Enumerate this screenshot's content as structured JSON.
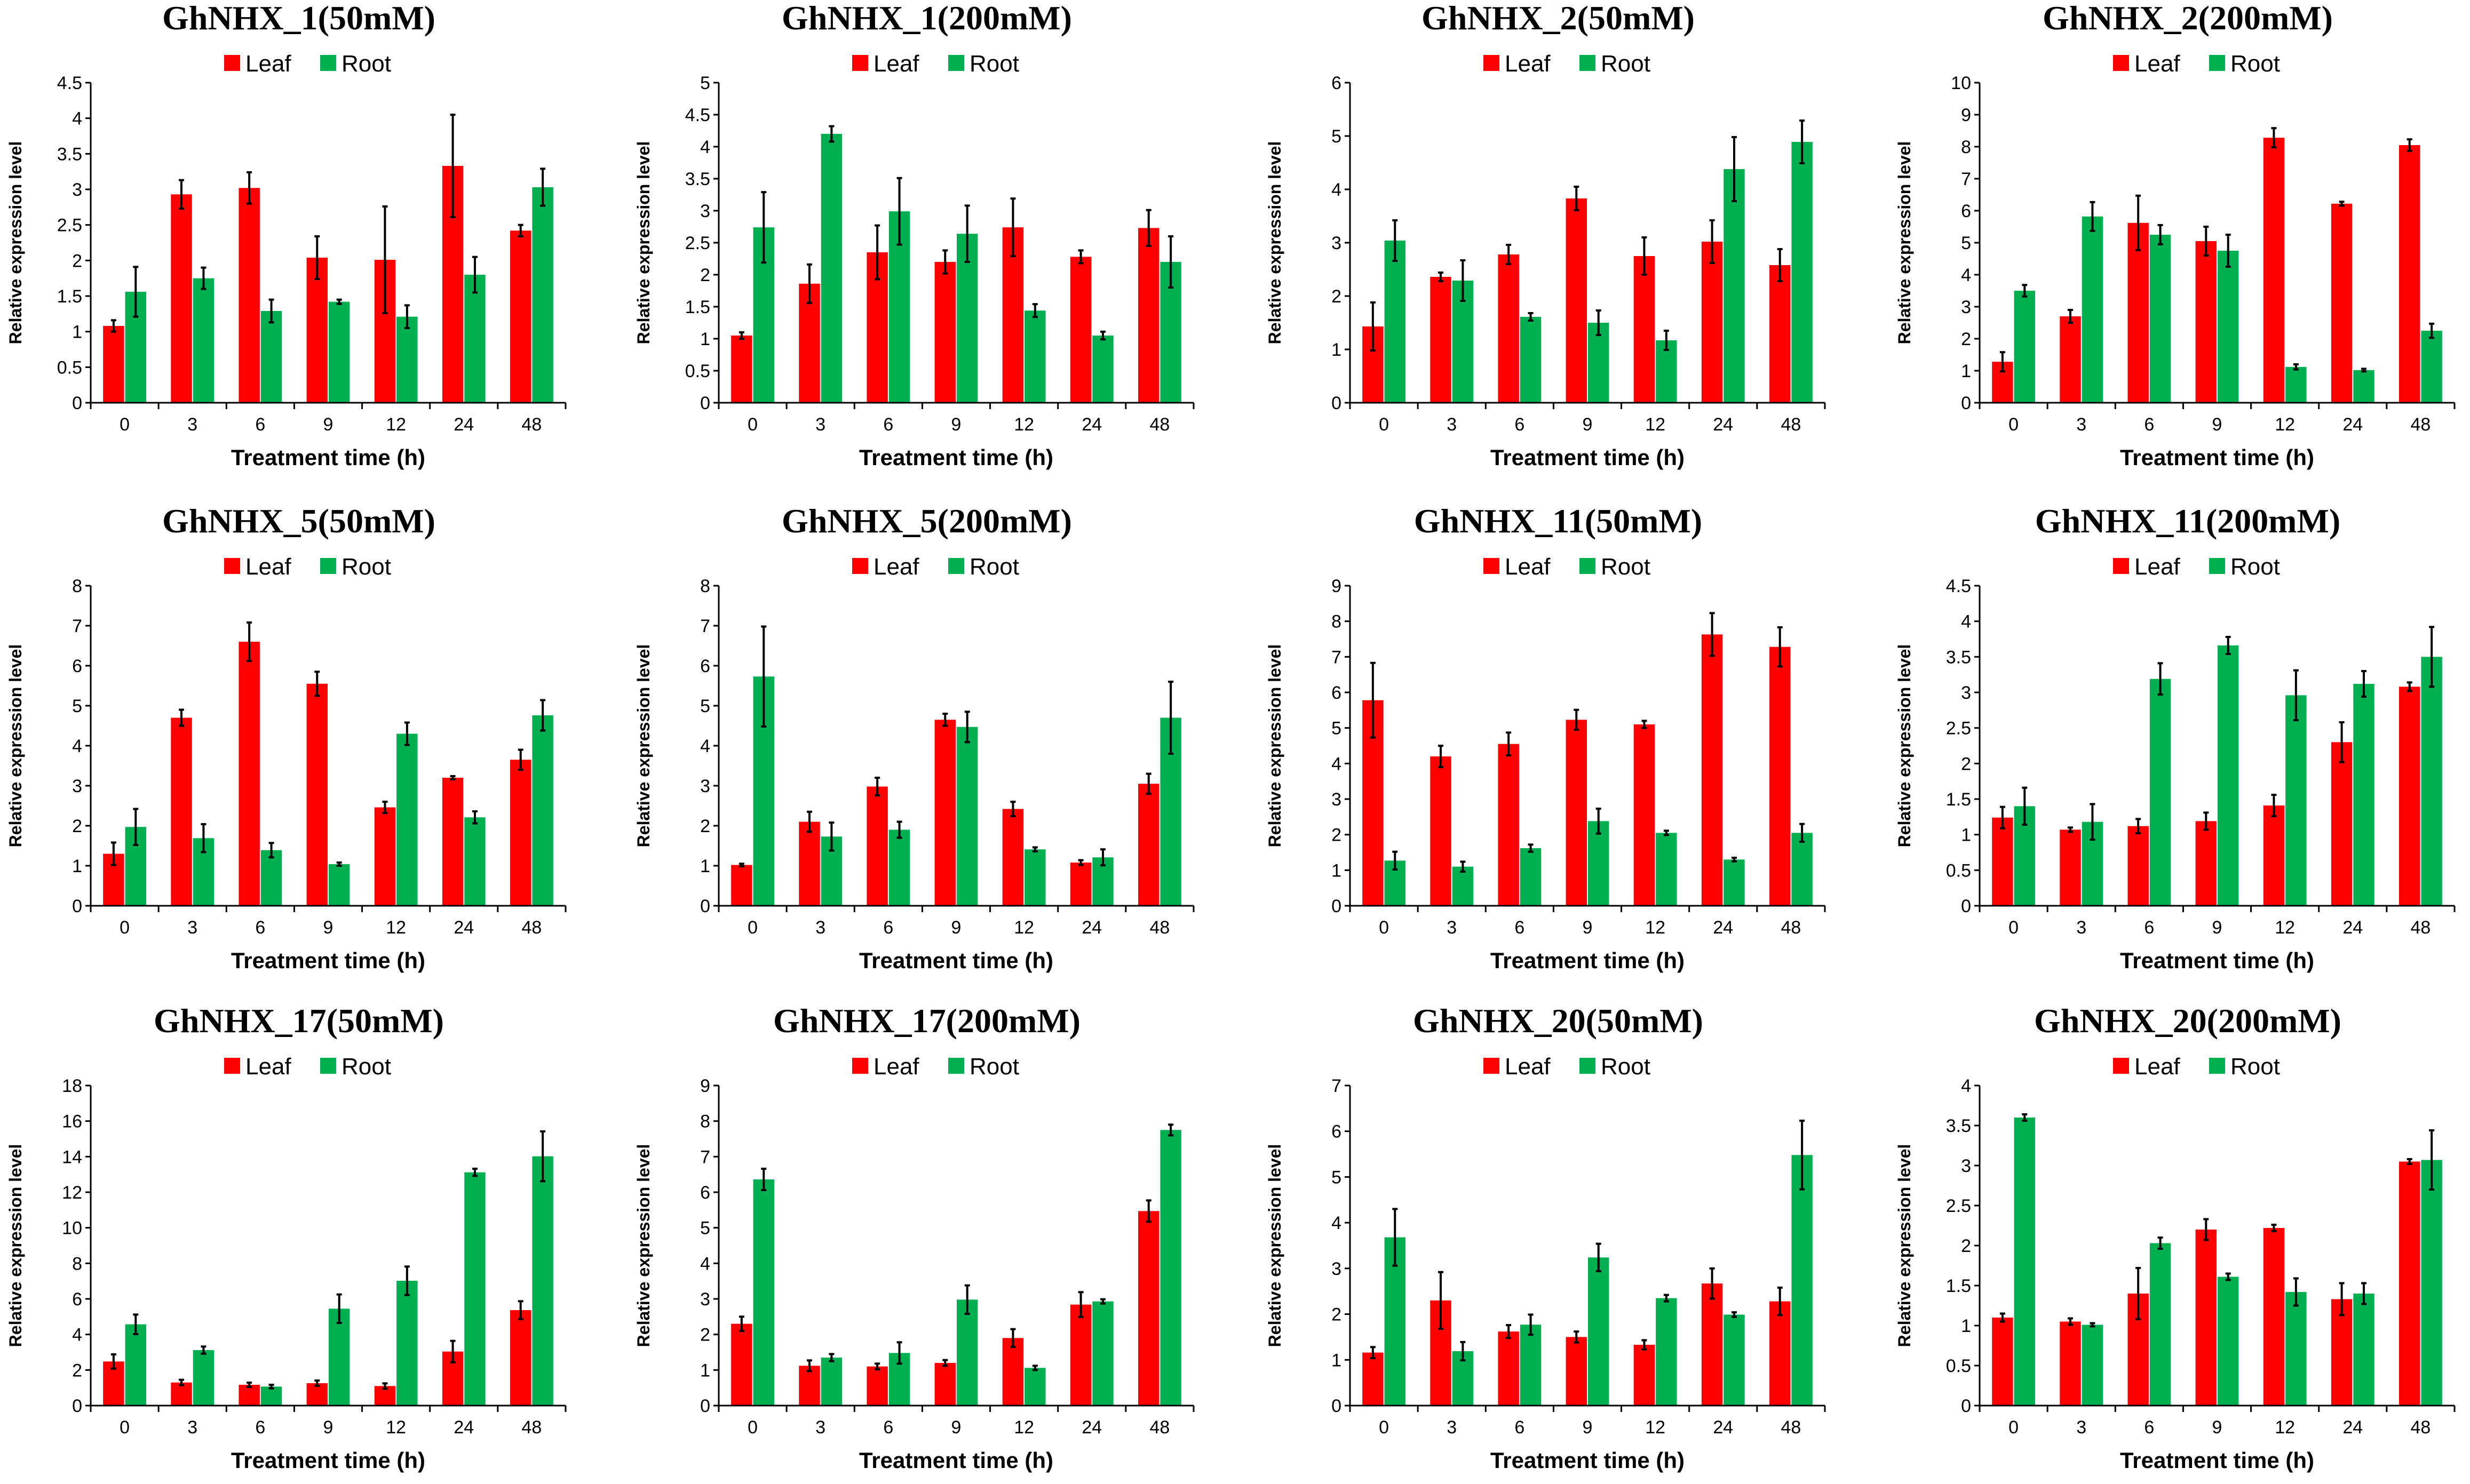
{
  "colors": {
    "leaf": "#ff0000",
    "root": "#00b050",
    "axis": "#000000",
    "error": "#000000"
  },
  "chart_data": [
    {
      "type": "bar",
      "title": "GhNHX_1(50mM)",
      "xlabel": "Treatment time (h)",
      "ylabel": "Relative expression level",
      "categories": [
        "0",
        "3",
        "6",
        "9",
        "12",
        "24",
        "48"
      ],
      "ylim": [
        0,
        4.5
      ],
      "ystep": 0.5,
      "yticks": [
        "0",
        "0.5",
        "1",
        "1.5",
        "2",
        "2.5",
        "3",
        "3.5",
        "4",
        "4.5"
      ],
      "series": [
        {
          "name": "Leaf",
          "values": [
            1.08,
            2.93,
            3.02,
            2.04,
            2.01,
            3.33,
            2.42
          ],
          "errors": [
            0.08,
            0.2,
            0.22,
            0.3,
            0.75,
            0.72,
            0.08
          ]
        },
        {
          "name": "Root",
          "values": [
            1.56,
            1.75,
            1.29,
            1.42,
            1.21,
            1.8,
            3.03
          ],
          "errors": [
            0.35,
            0.15,
            0.16,
            0.03,
            0.16,
            0.25,
            0.26
          ]
        }
      ]
    },
    {
      "type": "bar",
      "title": "GhNHX_1(200mM)",
      "xlabel": "Treatment time (h)",
      "ylabel": "Relative expression level",
      "categories": [
        "0",
        "3",
        "6",
        "9",
        "12",
        "24",
        "48"
      ],
      "ylim": [
        0,
        5
      ],
      "ystep": 0.5,
      "yticks": [
        "0",
        "0.5",
        "1",
        "1.5",
        "2",
        "2.5",
        "3",
        "3.5",
        "4",
        "4.5",
        "5"
      ],
      "series": [
        {
          "name": "Leaf",
          "values": [
            1.05,
            1.86,
            2.35,
            2.2,
            2.74,
            2.28,
            2.73
          ],
          "errors": [
            0.05,
            0.3,
            0.42,
            0.18,
            0.45,
            0.1,
            0.28
          ]
        },
        {
          "name": "Root",
          "values": [
            2.74,
            4.2,
            2.99,
            2.64,
            1.44,
            1.05,
            2.2
          ],
          "errors": [
            0.55,
            0.12,
            0.52,
            0.44,
            0.1,
            0.06,
            0.4
          ]
        }
      ]
    },
    {
      "type": "bar",
      "title": "GhNHX_2(50mM)",
      "xlabel": "Treatment time (h)",
      "ylabel": "Relative expression level",
      "categories": [
        "0",
        "3",
        "6",
        "9",
        "12",
        "24",
        "48"
      ],
      "ylim": [
        0,
        6
      ],
      "ystep": 1,
      "yticks": [
        "0",
        "1",
        "2",
        "3",
        "4",
        "5",
        "6"
      ],
      "series": [
        {
          "name": "Leaf",
          "values": [
            1.43,
            2.36,
            2.78,
            3.83,
            2.75,
            3.02,
            2.58
          ],
          "errors": [
            0.45,
            0.08,
            0.18,
            0.22,
            0.35,
            0.4,
            0.3
          ]
        },
        {
          "name": "Root",
          "values": [
            3.04,
            2.29,
            1.61,
            1.5,
            1.17,
            4.38,
            4.89
          ],
          "errors": [
            0.38,
            0.38,
            0.07,
            0.23,
            0.18,
            0.6,
            0.4
          ]
        }
      ]
    },
    {
      "type": "bar",
      "title": "GhNHX_2(200mM)",
      "xlabel": "Treatment time (h)",
      "ylabel": "Relative expression level",
      "categories": [
        "0",
        "3",
        "6",
        "9",
        "12",
        "24",
        "48"
      ],
      "ylim": [
        0,
        10
      ],
      "ystep": 1,
      "yticks": [
        "0",
        "1",
        "2",
        "3",
        "4",
        "5",
        "6",
        "7",
        "8",
        "9",
        "10"
      ],
      "series": [
        {
          "name": "Leaf",
          "values": [
            1.28,
            2.7,
            5.62,
            5.05,
            8.28,
            6.22,
            8.05
          ],
          "errors": [
            0.3,
            0.2,
            0.85,
            0.45,
            0.3,
            0.06,
            0.18
          ]
        },
        {
          "name": "Root",
          "values": [
            3.5,
            5.82,
            5.25,
            4.75,
            1.12,
            1.02,
            2.25
          ],
          "errors": [
            0.18,
            0.45,
            0.3,
            0.5,
            0.08,
            0.04,
            0.22
          ]
        }
      ]
    },
    {
      "type": "bar",
      "title": "GhNHX_5(50mM)",
      "xlabel": "Treatment time (h)",
      "ylabel": "Relative expression level",
      "categories": [
        "0",
        "3",
        "6",
        "9",
        "12",
        "24",
        "48"
      ],
      "ylim": [
        0,
        8
      ],
      "ystep": 1,
      "yticks": [
        "0",
        "1",
        "2",
        "3",
        "4",
        "5",
        "6",
        "7",
        "8"
      ],
      "series": [
        {
          "name": "Leaf",
          "values": [
            1.3,
            4.7,
            6.6,
            5.55,
            2.46,
            3.2,
            3.65
          ],
          "errors": [
            0.28,
            0.2,
            0.48,
            0.3,
            0.14,
            0.04,
            0.25
          ]
        },
        {
          "name": "Root",
          "values": [
            1.97,
            1.69,
            1.39,
            1.04,
            4.3,
            2.21,
            4.76
          ],
          "errors": [
            0.45,
            0.35,
            0.18,
            0.04,
            0.28,
            0.15,
            0.38
          ]
        }
      ]
    },
    {
      "type": "bar",
      "title": "GhNHX_5(200mM)",
      "xlabel": "Treatment time (h)",
      "ylabel": "Relative expression level",
      "categories": [
        "0",
        "3",
        "6",
        "9",
        "12",
        "24",
        "48"
      ],
      "ylim": [
        0,
        8
      ],
      "ystep": 1,
      "yticks": [
        "0",
        "1",
        "2",
        "3",
        "4",
        "5",
        "6",
        "7",
        "8"
      ],
      "series": [
        {
          "name": "Leaf",
          "values": [
            1.02,
            2.1,
            2.98,
            4.65,
            2.42,
            1.08,
            3.05
          ],
          "errors": [
            0.03,
            0.25,
            0.22,
            0.15,
            0.18,
            0.06,
            0.25
          ]
        },
        {
          "name": "Root",
          "values": [
            5.73,
            1.73,
            1.9,
            4.47,
            1.41,
            1.21,
            4.7
          ],
          "errors": [
            1.25,
            0.35,
            0.2,
            0.38,
            0.05,
            0.2,
            0.9
          ]
        }
      ]
    },
    {
      "type": "bar",
      "title": "GhNHX_11(50mM)",
      "xlabel": "Treatment time (h)",
      "ylabel": "Relative expression level",
      "categories": [
        "0",
        "3",
        "6",
        "9",
        "12",
        "24",
        "48"
      ],
      "ylim": [
        0,
        9
      ],
      "ystep": 1,
      "yticks": [
        "0",
        "1",
        "2",
        "3",
        "4",
        "5",
        "6",
        "7",
        "8",
        "9"
      ],
      "series": [
        {
          "name": "Leaf",
          "values": [
            5.78,
            4.2,
            4.55,
            5.23,
            5.1,
            7.63,
            7.28
          ],
          "errors": [
            1.05,
            0.3,
            0.32,
            0.28,
            0.1,
            0.6,
            0.55
          ]
        },
        {
          "name": "Root",
          "values": [
            1.27,
            1.1,
            1.62,
            2.38,
            2.05,
            1.3,
            2.05
          ],
          "errors": [
            0.25,
            0.14,
            0.1,
            0.35,
            0.06,
            0.05,
            0.25
          ]
        }
      ]
    },
    {
      "type": "bar",
      "title": "GhNHX_11(200mM)",
      "xlabel": "Treatment time (h)",
      "ylabel": "Relative expression level",
      "categories": [
        "0",
        "3",
        "6",
        "9",
        "12",
        "24",
        "48"
      ],
      "ylim": [
        0,
        4.5
      ],
      "ystep": 0.5,
      "yticks": [
        "0",
        "0.5",
        "1",
        "1.5",
        "2",
        "2.5",
        "3",
        "3.5",
        "4",
        "4.5"
      ],
      "series": [
        {
          "name": "Leaf",
          "values": [
            1.24,
            1.07,
            1.12,
            1.19,
            1.41,
            2.3,
            3.08
          ],
          "errors": [
            0.15,
            0.03,
            0.1,
            0.12,
            0.15,
            0.28,
            0.06
          ]
        },
        {
          "name": "Root",
          "values": [
            1.4,
            1.18,
            3.19,
            3.66,
            2.96,
            3.12,
            3.5
          ],
          "errors": [
            0.26,
            0.25,
            0.22,
            0.12,
            0.35,
            0.18,
            0.42
          ]
        }
      ]
    },
    {
      "type": "bar",
      "title": "GhNHX_17(50mM)",
      "xlabel": "Treatment time (h)",
      "ylabel": "Relative expression level",
      "categories": [
        "0",
        "3",
        "6",
        "9",
        "12",
        "24",
        "48"
      ],
      "ylim": [
        0,
        18
      ],
      "ystep": 2,
      "yticks": [
        "0",
        "2",
        "4",
        "6",
        "8",
        "10",
        "12",
        "14",
        "16",
        "18"
      ],
      "series": [
        {
          "name": "Leaf",
          "values": [
            2.48,
            1.3,
            1.17,
            1.26,
            1.1,
            3.04,
            5.37
          ],
          "errors": [
            0.4,
            0.15,
            0.12,
            0.15,
            0.15,
            0.6,
            0.5
          ]
        },
        {
          "name": "Root",
          "values": [
            4.57,
            3.12,
            1.07,
            5.45,
            7.02,
            13.12,
            14.02
          ],
          "errors": [
            0.55,
            0.2,
            0.1,
            0.8,
            0.8,
            0.2,
            1.4
          ]
        }
      ]
    },
    {
      "type": "bar",
      "title": "GhNHX_17(200mM)",
      "xlabel": "Treatment time (h)",
      "ylabel": "Relative expression level",
      "categories": [
        "0",
        "3",
        "6",
        "9",
        "12",
        "24",
        "48"
      ],
      "ylim": [
        0,
        9
      ],
      "ystep": 1,
      "yticks": [
        "0",
        "1",
        "2",
        "3",
        "4",
        "5",
        "6",
        "7",
        "8",
        "9"
      ],
      "series": [
        {
          "name": "Leaf",
          "values": [
            2.3,
            1.12,
            1.1,
            1.2,
            1.9,
            2.84,
            5.47
          ],
          "errors": [
            0.2,
            0.15,
            0.08,
            0.08,
            0.25,
            0.35,
            0.3
          ]
        },
        {
          "name": "Root",
          "values": [
            6.36,
            1.35,
            1.48,
            2.98,
            1.06,
            2.93,
            7.75
          ],
          "errors": [
            0.3,
            0.1,
            0.3,
            0.4,
            0.06,
            0.06,
            0.15
          ]
        }
      ]
    },
    {
      "type": "bar",
      "title": "GhNHX_20(50mM)",
      "xlabel": "Treatment time (h)",
      "ylabel": "Relative expression level",
      "categories": [
        "0",
        "3",
        "6",
        "9",
        "12",
        "24",
        "48"
      ],
      "ylim": [
        0,
        7
      ],
      "ystep": 1,
      "yticks": [
        "0",
        "1",
        "2",
        "3",
        "4",
        "5",
        "6",
        "7"
      ],
      "series": [
        {
          "name": "Leaf",
          "values": [
            1.16,
            2.3,
            1.62,
            1.5,
            1.33,
            2.67,
            2.28
          ],
          "errors": [
            0.12,
            0.62,
            0.14,
            0.12,
            0.1,
            0.33,
            0.3
          ]
        },
        {
          "name": "Root",
          "values": [
            3.68,
            1.19,
            1.77,
            3.24,
            2.35,
            1.99,
            5.48
          ],
          "errors": [
            0.62,
            0.2,
            0.22,
            0.3,
            0.07,
            0.05,
            0.75
          ]
        }
      ]
    },
    {
      "type": "bar",
      "title": "GhNHX_20(200mM)",
      "xlabel": "Treatment time (h)",
      "ylabel": "Relative expression level",
      "categories": [
        "0",
        "3",
        "6",
        "9",
        "12",
        "24",
        "48"
      ],
      "ylim": [
        0,
        4
      ],
      "ystep": 0.5,
      "yticks": [
        "0",
        "0.5",
        "1",
        "1.5",
        "2",
        "2.5",
        "3",
        "3.5",
        "4"
      ],
      "series": [
        {
          "name": "Leaf",
          "values": [
            1.1,
            1.05,
            1.4,
            2.2,
            2.22,
            1.33,
            3.05
          ],
          "errors": [
            0.05,
            0.04,
            0.32,
            0.13,
            0.04,
            0.2,
            0.03
          ]
        },
        {
          "name": "Root",
          "values": [
            3.6,
            1.01,
            2.03,
            1.61,
            1.42,
            1.4,
            3.07
          ],
          "errors": [
            0.04,
            0.02,
            0.07,
            0.04,
            0.17,
            0.13,
            0.37
          ]
        }
      ]
    }
  ]
}
